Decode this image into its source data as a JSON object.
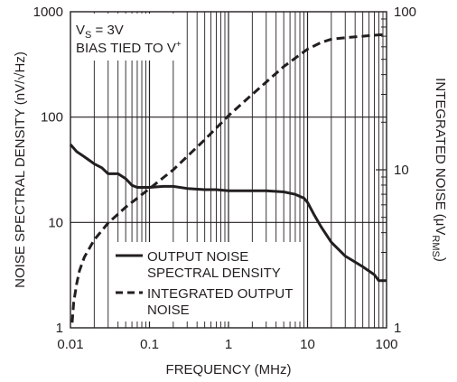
{
  "chart_data": {
    "type": "line",
    "x_scale": "log",
    "xlim": [
      0.01,
      100
    ],
    "xlabel": "FREQUENCY (MHz)",
    "x_ticks": [
      "0.01",
      "0.1",
      "1",
      "10",
      "100"
    ],
    "left_axis": {
      "label": "NOISE SPECTRAL DENSITY (nV/√Hz)",
      "scale": "log",
      "ylim": [
        1,
        1000
      ],
      "ticks": [
        "1",
        "10",
        "100",
        "1000"
      ]
    },
    "right_axis": {
      "label_main": "INTEGRATED NOISE (μV",
      "label_sub": "RMS",
      "label_close": ")",
      "scale": "log",
      "ylim": [
        1,
        100
      ],
      "ticks": [
        "1",
        "10",
        "100"
      ]
    },
    "annotation": {
      "line1_main": "V",
      "line1_sub": "S",
      "line1_rest": " = 3V",
      "line2_main": "BIAS TIED TO V",
      "line2_sup": "+"
    },
    "legend": {
      "placement": "bottom-center",
      "entries": [
        {
          "style": "solid",
          "line1": "OUTPUT NOISE",
          "line2": "SPECTRAL DENSITY"
        },
        {
          "style": "dashed",
          "line1": "INTEGRATED OUTPUT",
          "line2": "NOISE"
        }
      ]
    },
    "grid": true,
    "series": [
      {
        "name": "OUTPUT NOISE SPECTRAL DENSITY",
        "axis": "left",
        "style": "solid",
        "x": [
          0.01,
          0.012,
          0.015,
          0.02,
          0.025,
          0.03,
          0.04,
          0.05,
          0.06,
          0.07,
          0.08,
          0.1,
          0.15,
          0.2,
          0.3,
          0.5,
          0.7,
          1,
          1.5,
          2,
          3,
          5,
          7,
          9,
          10,
          12,
          15,
          20,
          30,
          50,
          70,
          80,
          100
        ],
        "y": [
          55,
          47,
          42,
          36,
          33,
          29,
          29,
          26,
          22.5,
          21.5,
          21.5,
          21.5,
          22,
          22,
          21,
          20.5,
          20.5,
          20,
          20,
          20,
          20,
          19.5,
          18.5,
          17,
          15.5,
          12,
          9,
          6.5,
          4.8,
          3.8,
          3.2,
          2.8,
          2.8
        ]
      },
      {
        "name": "INTEGRATED OUTPUT NOISE",
        "axis": "right",
        "style": "dashed",
        "x": [
          0.0105,
          0.011,
          0.012,
          0.013,
          0.015,
          0.02,
          0.03,
          0.05,
          0.1,
          0.2,
          0.5,
          1,
          2,
          5,
          10,
          15,
          20,
          30,
          50,
          70,
          100
        ],
        "y": [
          1.08,
          1.45,
          1.9,
          2.3,
          2.8,
          3.6,
          4.6,
          5.8,
          7.6,
          10,
          15.5,
          22,
          30,
          45,
          58,
          64,
          67,
          68.5,
          70,
          71,
          72
        ]
      }
    ]
  }
}
